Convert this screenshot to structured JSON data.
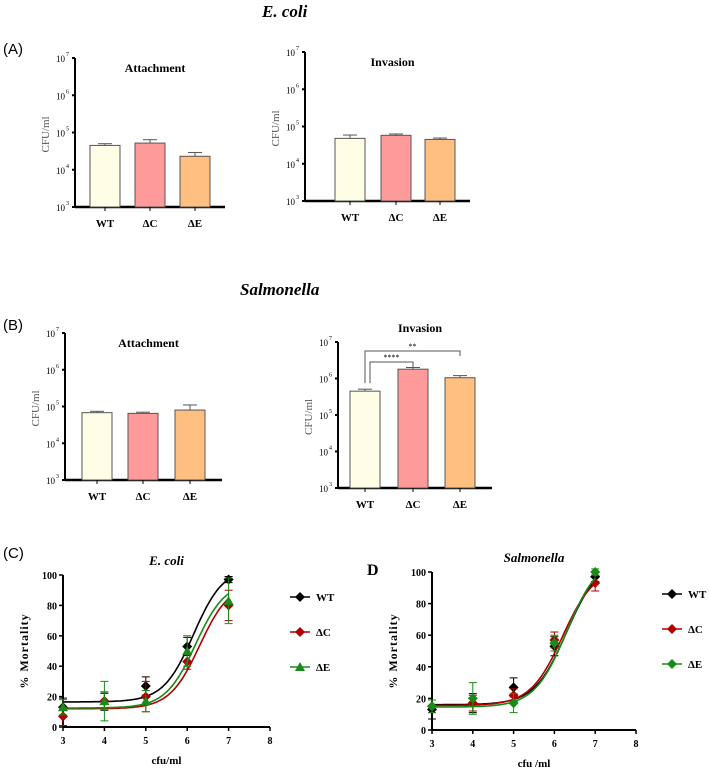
{
  "sections": {
    "ecoli": "E. coli",
    "salmonella": "Salmonella"
  },
  "panels": {
    "a": "(A)",
    "b": "(B)",
    "c": "(C)",
    "d": "D"
  },
  "colors": {
    "WT": "#fffde6",
    "ΔC": "#ff9a9a",
    "ΔE": "#ffbf80",
    "line_WT": "#000000",
    "line_ΔC": "#b00000",
    "line_ΔE": "#1a8a1a"
  },
  "chart_data": [
    {
      "type": "bar",
      "id": "a1",
      "title": "Attachment",
      "ylabel": "CFU/ml",
      "yscale": "log",
      "ylim": [
        1000,
        10000000
      ],
      "yticks": [
        "10",
        "10",
        "10",
        "10",
        "10"
      ],
      "yexp": [
        "3",
        "4",
        "5",
        "6",
        "7"
      ],
      "categories": [
        "WT",
        "ΔC",
        "ΔE"
      ],
      "values": [
        45000,
        52000,
        23000
      ],
      "errors": [
        5000,
        12000,
        6000
      ]
    },
    {
      "type": "bar",
      "id": "a2",
      "title": "Invasion",
      "ylabel": "CFU/ml",
      "yscale": "log",
      "ylim": [
        1000,
        10000000
      ],
      "yticks": [
        "10",
        "10",
        "10",
        "10",
        "10"
      ],
      "yexp": [
        "3",
        "4",
        "5",
        "6",
        "7"
      ],
      "categories": [
        "WT",
        "ΔC",
        "ΔE"
      ],
      "values": [
        48000,
        58000,
        45000
      ],
      "errors": [
        11000,
        5000,
        4000
      ]
    },
    {
      "type": "bar",
      "id": "b1",
      "title": "Attachment",
      "ylabel": "CFU/ml",
      "yscale": "log",
      "ylim": [
        1000,
        10000000
      ],
      "yticks": [
        "10",
        "10",
        "10",
        "10",
        "10"
      ],
      "yexp": [
        "3",
        "4",
        "5",
        "6",
        "7"
      ],
      "categories": [
        "WT",
        "ΔC",
        "ΔE"
      ],
      "values": [
        68000,
        65000,
        80000
      ],
      "errors": [
        6000,
        5000,
        30000
      ]
    },
    {
      "type": "bar",
      "id": "b2",
      "title": "Invasion",
      "ylabel": "CFU/ml",
      "yscale": "log",
      "ylim": [
        1000,
        10000000
      ],
      "yticks": [
        "10",
        "10",
        "10",
        "10",
        "10"
      ],
      "yexp": [
        "3",
        "4",
        "5",
        "6",
        "7"
      ],
      "categories": [
        "WT",
        "ΔC",
        "ΔE"
      ],
      "values": [
        450000,
        1800000,
        1050000
      ],
      "errors": [
        60000,
        200000,
        150000
      ],
      "significance": [
        {
          "from": "WT",
          "to": "ΔC",
          "label": "****"
        },
        {
          "from": "WT",
          "to": "ΔE",
          "label": "**"
        }
      ]
    },
    {
      "type": "line",
      "id": "c",
      "title": "E. coli",
      "xlabel": "cfu/ml",
      "ylabel": "% Mortality",
      "xlim": [
        3,
        8
      ],
      "ylim": [
        0,
        100
      ],
      "xticks": [
        "3",
        "4",
        "5",
        "6",
        "7",
        "8"
      ],
      "yticks": [
        "0",
        "20",
        "40",
        "60",
        "80",
        "100"
      ],
      "x": [
        3,
        4,
        5,
        6,
        7
      ],
      "series": [
        {
          "name": "WT",
          "marker": "diamond",
          "values": [
            13,
            17,
            27,
            53,
            97
          ],
          "errors": [
            6,
            6,
            6,
            6,
            2
          ],
          "fit": {
            "bottom": 16.5,
            "top": 105,
            "ec50": 6.15,
            "hill": 1.2
          }
        },
        {
          "name": "ΔC",
          "marker": "diamond",
          "values": [
            7,
            17,
            20,
            43,
            80
          ],
          "errors": [
            6,
            5,
            10,
            5,
            10
          ],
          "fit": {
            "bottom": 12,
            "top": 95,
            "ec50": 6.3,
            "hill": 1.2
          }
        },
        {
          "name": "ΔE",
          "marker": "triangle",
          "values": [
            13,
            17,
            17,
            50,
            83
          ],
          "errors": [
            5,
            13,
            7,
            10,
            15
          ],
          "fit": {
            "bottom": 12.5,
            "top": 96,
            "ec50": 6.2,
            "hill": 1.2
          }
        }
      ]
    },
    {
      "type": "line",
      "id": "d",
      "title": "Salmonella",
      "xlabel": "cfu /ml",
      "ylabel": "% Mortality",
      "xlim": [
        3,
        8
      ],
      "ylim": [
        0,
        100
      ],
      "xticks": [
        "3",
        "4",
        "5",
        "6",
        "7",
        "8"
      ],
      "yticks": [
        "0",
        "20",
        "40",
        "60",
        "80",
        "100"
      ],
      "x": [
        3,
        4,
        5,
        6,
        7
      ],
      "series": [
        {
          "name": "WT",
          "marker": "diamond",
          "values": [
            13,
            17,
            27,
            53,
            97
          ],
          "errors": [
            6,
            6,
            6,
            6,
            3
          ],
          "fit": {
            "bottom": 16,
            "top": 108,
            "ec50": 6.3,
            "hill": 1.1
          }
        },
        {
          "name": "ΔC",
          "marker": "diamond",
          "values": [
            15,
            17,
            22,
            57,
            93
          ],
          "errors": [
            4,
            5,
            4,
            5,
            5
          ],
          "fit": {
            "bottom": 15.5,
            "top": 103,
            "ec50": 6.2,
            "hill": 1.1
          }
        },
        {
          "name": "ΔE",
          "marker": "diamond",
          "values": [
            15,
            20,
            17,
            55,
            100
          ],
          "errors": [
            4,
            10,
            6,
            5,
            2
          ],
          "fit": {
            "bottom": 14.5,
            "top": 110,
            "ec50": 6.3,
            "hill": 1.1
          }
        }
      ]
    }
  ]
}
